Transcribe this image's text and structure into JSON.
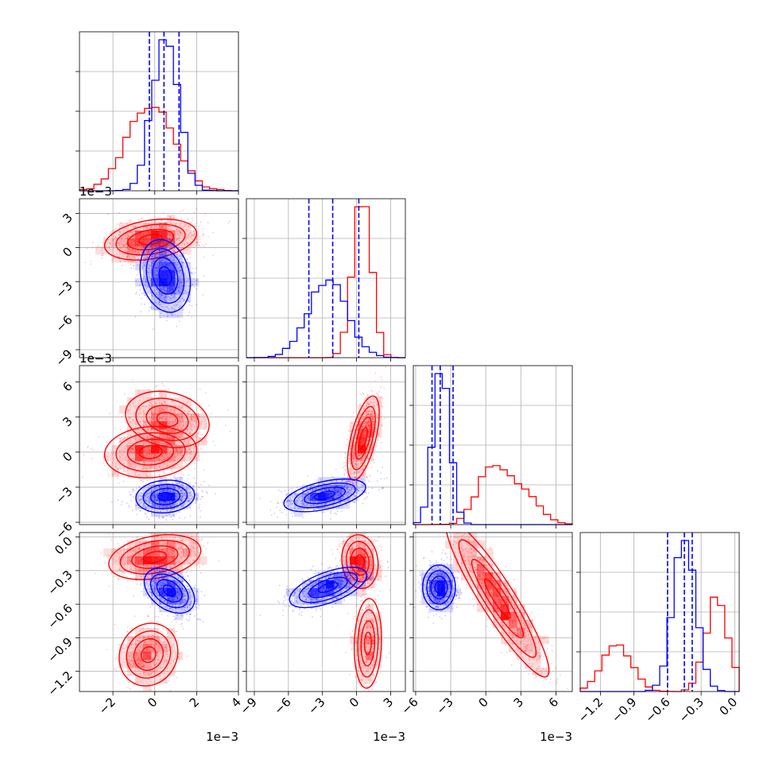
{
  "chart_data": {
    "type": "scatter",
    "title": "",
    "grid": true,
    "series": [
      {
        "color": "#ff0000"
      },
      {
        "color": "#0000ff"
      }
    ],
    "parameters": [
      {
        "axis_range": [
          -0.0036,
          0.004
        ],
        "ticks": [
          "−2",
          "0",
          "2",
          "4"
        ],
        "tick_values": [
          -0.002,
          0,
          0.002,
          0.004
        ],
        "offset_text": "1e−3"
      },
      {
        "axis_range": [
          -0.0097,
          0.0043
        ],
        "ticks": [
          "−9",
          "−6",
          "−3",
          "0",
          "3"
        ],
        "tick_values": [
          -0.009,
          -0.006,
          -0.003,
          0,
          0.003
        ],
        "offset_text": "1e−3"
      },
      {
        "axis_range": [
          -0.0062,
          0.0074
        ],
        "ticks": [
          "−6",
          "−3",
          "0",
          "3",
          "6"
        ],
        "tick_values": [
          -0.006,
          -0.003,
          0,
          0.003,
          0.006
        ],
        "offset_text": "1e−3"
      },
      {
        "axis_range": [
          -1.38,
          0.04
        ],
        "ticks": [
          "−1.2",
          "−0.9",
          "−0.6",
          "−0.3",
          "0.0"
        ],
        "tick_values": [
          -1.2,
          -0.9,
          -0.6,
          -0.3,
          0.0
        ],
        "offset_text": ""
      }
    ],
    "quantile_lines": [
      [
        -0.00026,
        0.00044,
        0.00116
      ],
      [
        -0.0042,
        -0.0021,
        0.0002
      ],
      [
        -0.0046,
        -0.0039,
        -0.0028
      ],
      [
        -0.6,
        -0.45,
        -0.38
      ]
    ],
    "distributions": {
      "red": [
        {
          "comps": [
            {
              "w": 1,
              "mx": [
                -0.0002
              ],
              "sd": [
                0.0011
              ]
            }
          ]
        },
        {
          "comps": [
            {
              "w": 1,
              "mx": [
                0.0005
              ],
              "sd": [
                0.0008
              ]
            }
          ]
        },
        {
          "comps": [
            {
              "w": 0.55,
              "mx": [
                0.0004
              ],
              "sd": [
                0.0012
              ]
            },
            {
              "w": 0.45,
              "mx": [
                0.003
              ],
              "sd": [
                0.0014
              ]
            }
          ]
        },
        {
          "comps": [
            {
              "w": 0.6,
              "mx": [
                -0.16
              ],
              "sd": [
                0.1
              ]
            },
            {
              "w": 0.4,
              "mx": [
                -1.05
              ],
              "sd": [
                0.13
              ]
            }
          ]
        }
      ],
      "blue": [
        {
          "comps": [
            {
              "w": 1,
              "mx": [
                0.0005
              ],
              "sd": [
                0.0006
              ]
            }
          ]
        },
        {
          "comps": [
            {
              "w": 1,
              "mx": [
                -0.0025
              ],
              "sd": [
                0.0017
              ]
            }
          ]
        },
        {
          "comps": [
            {
              "w": 1,
              "mx": [
                -0.0038
              ],
              "sd": [
                0.0007
              ]
            }
          ]
        },
        {
          "comps": [
            {
              "w": 1,
              "mx": [
                -0.45
              ],
              "sd": [
                0.1
              ]
            }
          ]
        }
      ]
    },
    "pair_shapes": {
      "red": {
        "1-0": [
          {
            "w": 1,
            "m": [
              -0.0002,
              0.0007
            ],
            "s": [
              0.0011,
              0.0009
            ],
            "r": 0.3
          }
        ],
        "2-0": [
          {
            "w": 0.55,
            "m": [
              -0.0002,
              0.0
            ],
            "s": [
              0.0011,
              0.0011
            ],
            "r": 0.1
          },
          {
            "w": 0.45,
            "m": [
              0.0006,
              0.0028
            ],
            "s": [
              0.001,
              0.0012
            ],
            "r": -0.2
          }
        ],
        "2-1": [
          {
            "w": 1,
            "m": [
              0.0006,
              0.0012
            ],
            "s": [
              0.0007,
              0.0018
            ],
            "r": 0.6
          }
        ],
        "3-0": [
          {
            "w": 0.6,
            "m": [
              0.0,
              -0.18
            ],
            "s": [
              0.0011,
              0.1
            ],
            "r": 0.3
          },
          {
            "w": 0.4,
            "m": [
              -0.0003,
              -1.05
            ],
            "s": [
              0.0007,
              0.14
            ],
            "r": 0.1
          }
        ],
        "3-1": [
          {
            "w": 0.6,
            "m": [
              0.0003,
              -0.22
            ],
            "s": [
              0.0008,
              0.12
            ],
            "r": -0.1
          },
          {
            "w": 0.4,
            "m": [
              0.001,
              -0.95
            ],
            "s": [
              0.0006,
              0.2
            ],
            "r": 0.1
          }
        ],
        "3-2": [
          {
            "w": 1,
            "m": [
              0.001,
              -0.55
            ],
            "s": [
              0.0022,
              0.35
            ],
            "r": -0.92
          }
        ]
      },
      "blue": {
        "1-0": [
          {
            "w": 1,
            "m": [
              0.0005,
              -0.0025
            ],
            "s": [
              0.0006,
              0.0016
            ],
            "r": -0.2
          }
        ],
        "2-0": [
          {
            "w": 1,
            "m": [
              0.0005,
              -0.0038
            ],
            "s": [
              0.0007,
              0.0007
            ],
            "r": 0.1
          }
        ],
        "2-1": [
          {
            "w": 1,
            "m": [
              -0.0028,
              -0.0037
            ],
            "s": [
              0.0018,
              0.0007
            ],
            "r": 0.5
          }
        ],
        "3-0": [
          {
            "w": 1,
            "m": [
              0.0007,
              -0.48
            ],
            "s": [
              0.0006,
              0.1
            ],
            "r": -0.4
          }
        ],
        "3-1": [
          {
            "w": 1,
            "m": [
              -0.0025,
              -0.45
            ],
            "s": [
              0.0017,
              0.09
            ],
            "r": 0.6
          }
        ],
        "3-2": [
          {
            "w": 1,
            "m": [
              -0.004,
              -0.45
            ],
            "s": [
              0.0007,
              0.1
            ],
            "r": 0.0
          }
        ]
      }
    }
  }
}
